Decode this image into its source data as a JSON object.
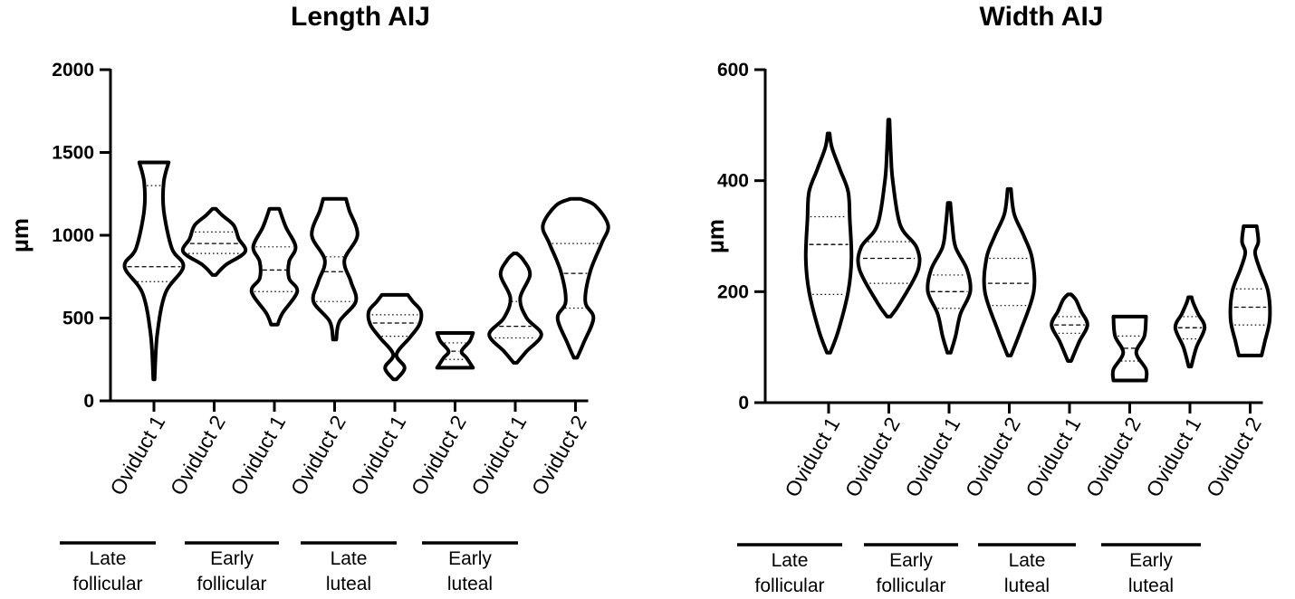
{
  "chart_data": [
    {
      "type": "violin",
      "title": "Length AIJ",
      "ylabel": "µm",
      "ylim": [
        0,
        2000
      ],
      "yticks": [
        0,
        500,
        1000,
        1500,
        2000
      ],
      "categories": [
        "Oviduct 1",
        "Oviduct 2",
        "Oviduct 1",
        "Oviduct 2",
        "Oviduct 1",
        "Oviduct 2",
        "Oviduct 1",
        "Oviduct 2"
      ],
      "groups": [
        {
          "line1": "Late",
          "line2": "follicular",
          "members": [
            0,
            1
          ]
        },
        {
          "line1": "Early",
          "line2": "follicular",
          "members": [
            2,
            3
          ]
        },
        {
          "line1": "Late",
          "line2": "luteal",
          "members": [
            4,
            5
          ]
        },
        {
          "line1": "Early",
          "line2": "luteal",
          "members": [
            6,
            7
          ]
        }
      ],
      "series": [
        {
          "min": 130,
          "max": 1440,
          "q1": 720,
          "median": 810,
          "q3": 1300,
          "profile": [
            [
              130,
              0.02
            ],
            [
              400,
              0.1
            ],
            [
              650,
              0.35
            ],
            [
              810,
              0.9
            ],
            [
              920,
              0.55
            ],
            [
              1150,
              0.3
            ],
            [
              1320,
              0.3
            ],
            [
              1440,
              0.45
            ]
          ]
        },
        {
          "min": 760,
          "max": 1160,
          "q1": 890,
          "median": 950,
          "q3": 1020,
          "profile": [
            [
              760,
              0.05
            ],
            [
              820,
              0.35
            ],
            [
              900,
              0.95
            ],
            [
              980,
              0.75
            ],
            [
              1060,
              0.6
            ],
            [
              1120,
              0.25
            ],
            [
              1160,
              0.05
            ]
          ]
        },
        {
          "min": 460,
          "max": 1160,
          "q1": 660,
          "median": 790,
          "q3": 930,
          "profile": [
            [
              460,
              0.1
            ],
            [
              530,
              0.25
            ],
            [
              660,
              0.7
            ],
            [
              740,
              0.45
            ],
            [
              840,
              0.45
            ],
            [
              930,
              0.65
            ],
            [
              1050,
              0.35
            ],
            [
              1160,
              0.15
            ]
          ]
        },
        {
          "min": 370,
          "max": 1220,
          "q1": 600,
          "median": 780,
          "q3": 870,
          "profile": [
            [
              370,
              0.05
            ],
            [
              480,
              0.15
            ],
            [
              600,
              0.65
            ],
            [
              720,
              0.5
            ],
            [
              850,
              0.3
            ],
            [
              1000,
              0.7
            ],
            [
              1150,
              0.45
            ],
            [
              1220,
              0.35
            ]
          ]
        },
        {
          "min": 130,
          "max": 640,
          "q1": 390,
          "median": 470,
          "q3": 520,
          "profile": [
            [
              130,
              0.05
            ],
            [
              200,
              0.3
            ],
            [
              280,
              0.05
            ],
            [
              380,
              0.45
            ],
            [
              460,
              0.75
            ],
            [
              540,
              0.8
            ],
            [
              600,
              0.55
            ],
            [
              640,
              0.4
            ]
          ]
        },
        {
          "min": 200,
          "max": 410,
          "q1": 250,
          "median": 300,
          "q3": 350,
          "profile": [
            [
              200,
              0.55
            ],
            [
              260,
              0.35
            ],
            [
              300,
              0.2
            ],
            [
              360,
              0.45
            ],
            [
              410,
              0.55
            ]
          ]
        },
        {
          "min": 230,
          "max": 890,
          "q1": 380,
          "median": 450,
          "q3": 600,
          "profile": [
            [
              230,
              0.05
            ],
            [
              300,
              0.35
            ],
            [
              400,
              0.8
            ],
            [
              500,
              0.35
            ],
            [
              620,
              0.15
            ],
            [
              760,
              0.45
            ],
            [
              850,
              0.25
            ],
            [
              890,
              0.05
            ]
          ]
        },
        {
          "min": 260,
          "max": 1220,
          "q1": 560,
          "median": 770,
          "q3": 950,
          "profile": [
            [
              260,
              0.05
            ],
            [
              350,
              0.25
            ],
            [
              500,
              0.55
            ],
            [
              600,
              0.3
            ],
            [
              780,
              0.45
            ],
            [
              950,
              0.8
            ],
            [
              1060,
              1.0
            ],
            [
              1180,
              0.6
            ],
            [
              1220,
              0.15
            ]
          ]
        }
      ]
    },
    {
      "type": "violin",
      "title": "Width AIJ",
      "ylabel": "µm",
      "ylim": [
        0,
        600
      ],
      "yticks": [
        0,
        200,
        400,
        600
      ],
      "categories": [
        "Oviduct 1",
        "Oviduct 2",
        "Oviduct 1",
        "Oviduct 2",
        "Oviduct 1",
        "Oviduct 2",
        "Oviduct 1",
        "Oviduct 2"
      ],
      "groups": [
        {
          "line1": "Late",
          "line2": "follicular",
          "members": [
            0,
            1
          ]
        },
        {
          "line1": "Early",
          "line2": "follicular",
          "members": [
            2,
            3
          ]
        },
        {
          "line1": "Late",
          "line2": "luteal",
          "members": [
            4,
            5
          ]
        },
        {
          "line1": "Early",
          "line2": "luteal",
          "members": [
            6,
            7
          ]
        }
      ],
      "series": [
        {
          "min": 90,
          "max": 485,
          "q1": 195,
          "median": 285,
          "q3": 335,
          "profile": [
            [
              90,
              0.05
            ],
            [
              130,
              0.3
            ],
            [
              200,
              0.6
            ],
            [
              260,
              0.7
            ],
            [
              330,
              0.65
            ],
            [
              380,
              0.6
            ],
            [
              420,
              0.35
            ],
            [
              460,
              0.1
            ],
            [
              485,
              0.03
            ]
          ]
        },
        {
          "min": 155,
          "max": 510,
          "q1": 215,
          "median": 260,
          "q3": 290,
          "profile": [
            [
              155,
              0.05
            ],
            [
              180,
              0.35
            ],
            [
              240,
              0.9
            ],
            [
              280,
              0.85
            ],
            [
              320,
              0.35
            ],
            [
              400,
              0.12
            ],
            [
              450,
              0.06
            ],
            [
              510,
              0.02
            ]
          ]
        },
        {
          "min": 90,
          "max": 360,
          "q1": 170,
          "median": 200,
          "q3": 230,
          "profile": [
            [
              90,
              0.05
            ],
            [
              120,
              0.2
            ],
            [
              160,
              0.35
            ],
            [
              200,
              0.65
            ],
            [
              240,
              0.55
            ],
            [
              280,
              0.2
            ],
            [
              320,
              0.1
            ],
            [
              360,
              0.04
            ]
          ]
        },
        {
          "min": 85,
          "max": 385,
          "q1": 175,
          "median": 215,
          "q3": 260,
          "profile": [
            [
              85,
              0.05
            ],
            [
              130,
              0.35
            ],
            [
              200,
              0.75
            ],
            [
              260,
              0.7
            ],
            [
              300,
              0.45
            ],
            [
              340,
              0.15
            ],
            [
              385,
              0.05
            ]
          ]
        },
        {
          "min": 75,
          "max": 195,
          "q1": 125,
          "median": 140,
          "q3": 155,
          "profile": [
            [
              75,
              0.05
            ],
            [
              110,
              0.3
            ],
            [
              140,
              0.55
            ],
            [
              165,
              0.35
            ],
            [
              185,
              0.2
            ],
            [
              195,
              0.05
            ]
          ]
        },
        {
          "min": 40,
          "max": 155,
          "q1": 75,
          "median": 98,
          "q3": 120,
          "profile": [
            [
              40,
              0.5
            ],
            [
              60,
              0.5
            ],
            [
              90,
              0.2
            ],
            [
              120,
              0.45
            ],
            [
              155,
              0.5
            ]
          ]
        },
        {
          "min": 65,
          "max": 190,
          "q1": 115,
          "median": 135,
          "q3": 155,
          "profile": [
            [
              65,
              0.04
            ],
            [
              100,
              0.2
            ],
            [
              135,
              0.45
            ],
            [
              160,
              0.25
            ],
            [
              180,
              0.1
            ],
            [
              190,
              0.05
            ]
          ]
        },
        {
          "min": 85,
          "max": 318,
          "q1": 140,
          "median": 172,
          "q3": 205,
          "profile": [
            [
              85,
              0.35
            ],
            [
              110,
              0.45
            ],
            [
              150,
              0.6
            ],
            [
              200,
              0.55
            ],
            [
              240,
              0.3
            ],
            [
              270,
              0.15
            ],
            [
              290,
              0.25
            ],
            [
              318,
              0.2
            ]
          ]
        }
      ]
    }
  ]
}
